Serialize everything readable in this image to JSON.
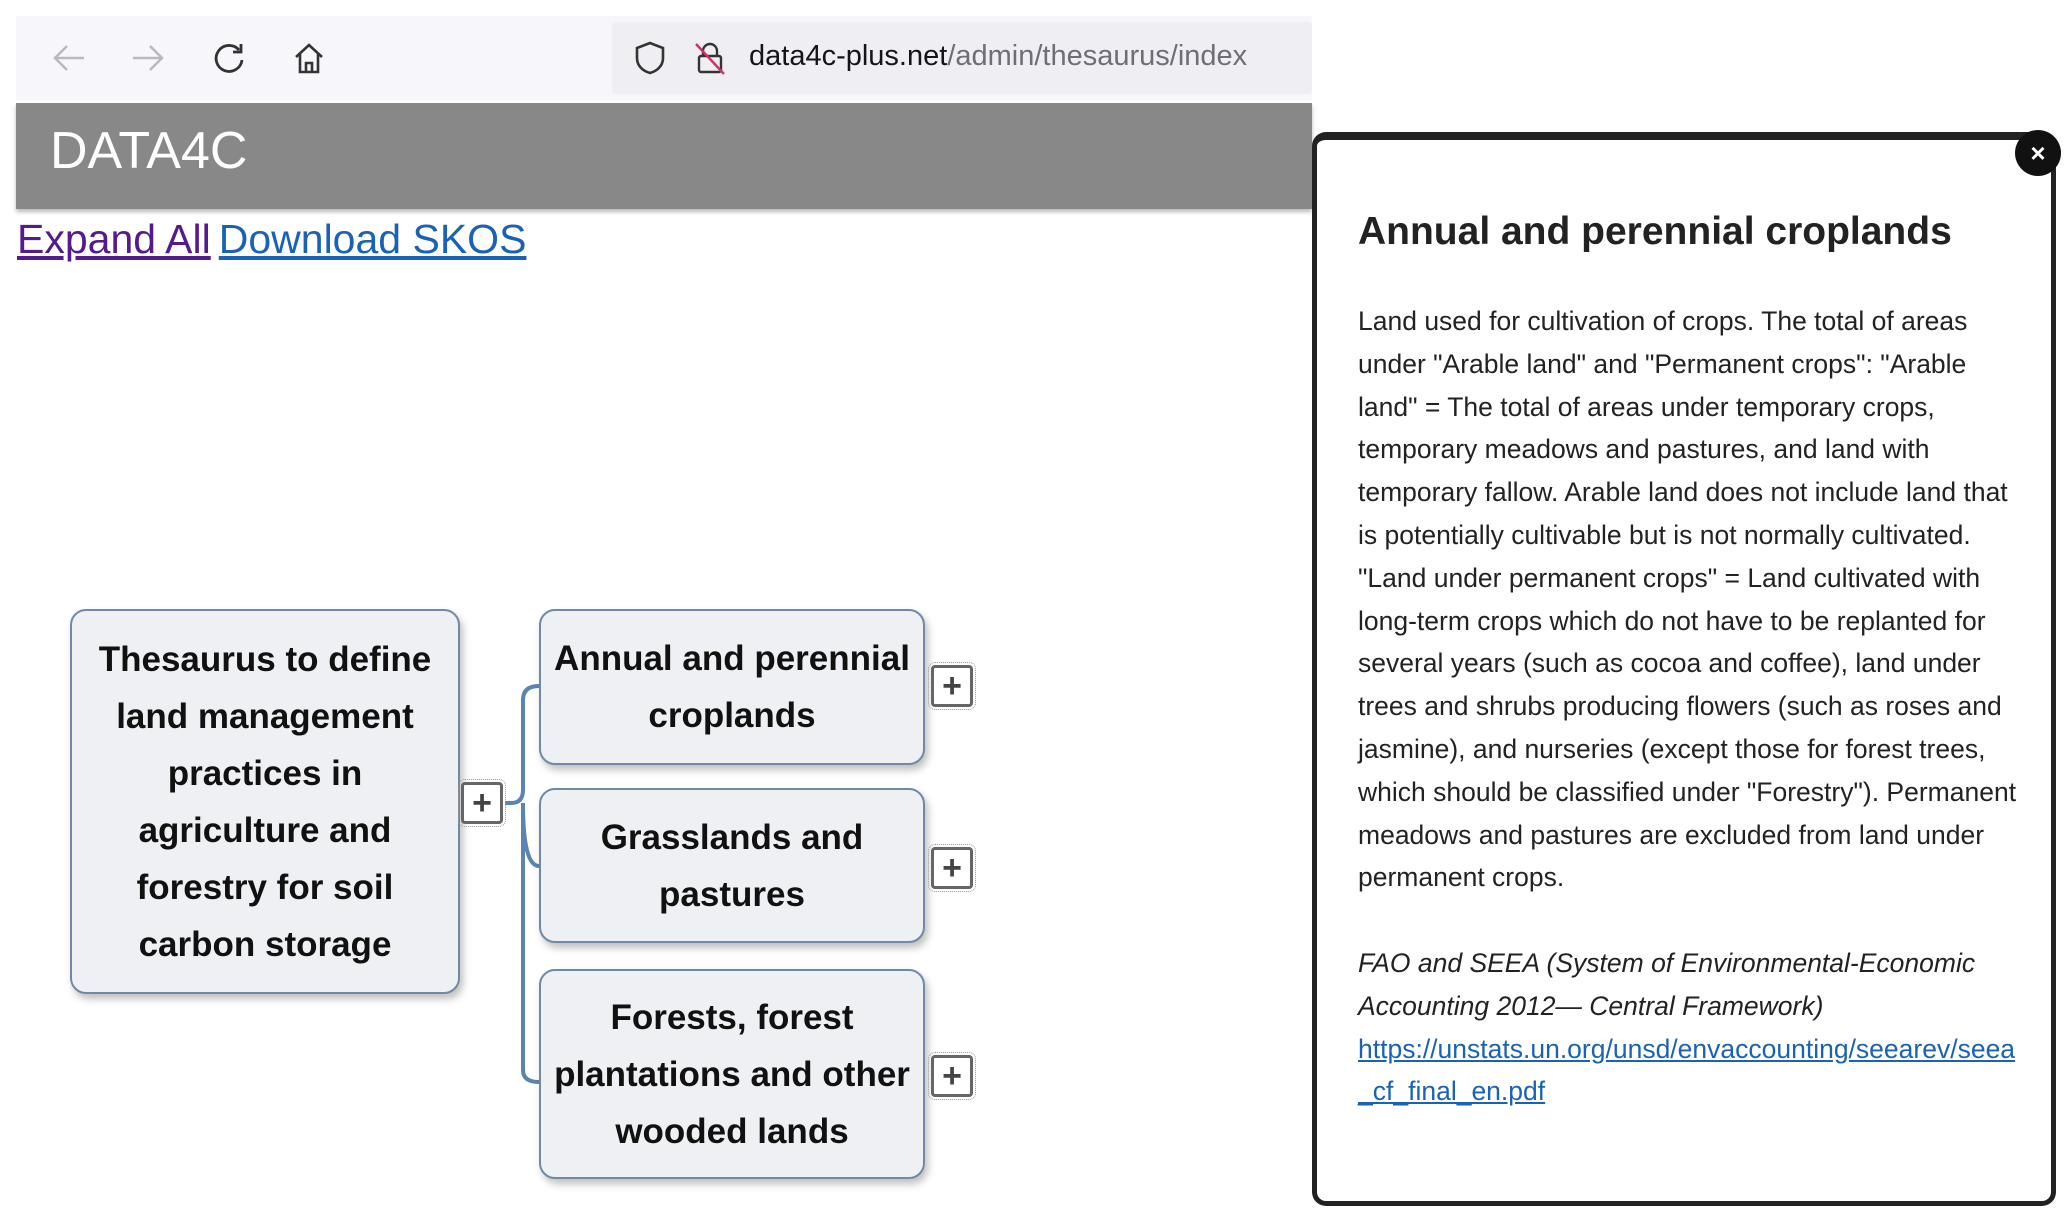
{
  "browser": {
    "url_host": "data4c-plus.net",
    "url_path": "/admin/thesaurus/index",
    "icons": [
      "back-arrow-icon",
      "forward-arrow-icon",
      "reload-icon",
      "home-icon",
      "shield-icon",
      "lock-icon"
    ]
  },
  "header": {
    "brand": "DATA4C",
    "bg_color": "#888888"
  },
  "links": {
    "expand_all": "Expand All",
    "download_skos": "Download SKOS"
  },
  "tree": {
    "root": "Thesaurus to define land management practices in agriculture and forestry for soil carbon storage",
    "children": [
      {
        "label": "Annual and perennial croplands"
      },
      {
        "label": "Grasslands and pastures"
      },
      {
        "label": "Forests, forest plantations and other wooded lands"
      }
    ],
    "expand_symbol": "+"
  },
  "popup": {
    "close": "×",
    "title": "Annual and perennial croplands",
    "definition": "Land used for cultivation of crops. The total of areas under \"Arable land\" and \"Permanent crops\": \"Arable land\" = The total of areas under temporary crops, temporary meadows and pastures, and land with temporary fallow. Arable land does not include land that is potentially cultivable but is not normally cultivated. \"Land under permanent crops\" = Land cultivated with long-term crops which do not have to be replanted for several years (such as cocoa and coffee), land under trees and shrubs producing flowers (such as roses and jasmine), and nurseries (except those for forest trees, which should be classified under \"Forestry\"). Permanent meadows and pastures are excluded from land under permanent crops.",
    "source": "FAO and SEEA (System of Environmental-Economic Accounting 2012— Central Framework)",
    "source_link": "https://unstats.un.org/unsd/envaccounting/seearev/seea_cf_final_en.pdf"
  }
}
